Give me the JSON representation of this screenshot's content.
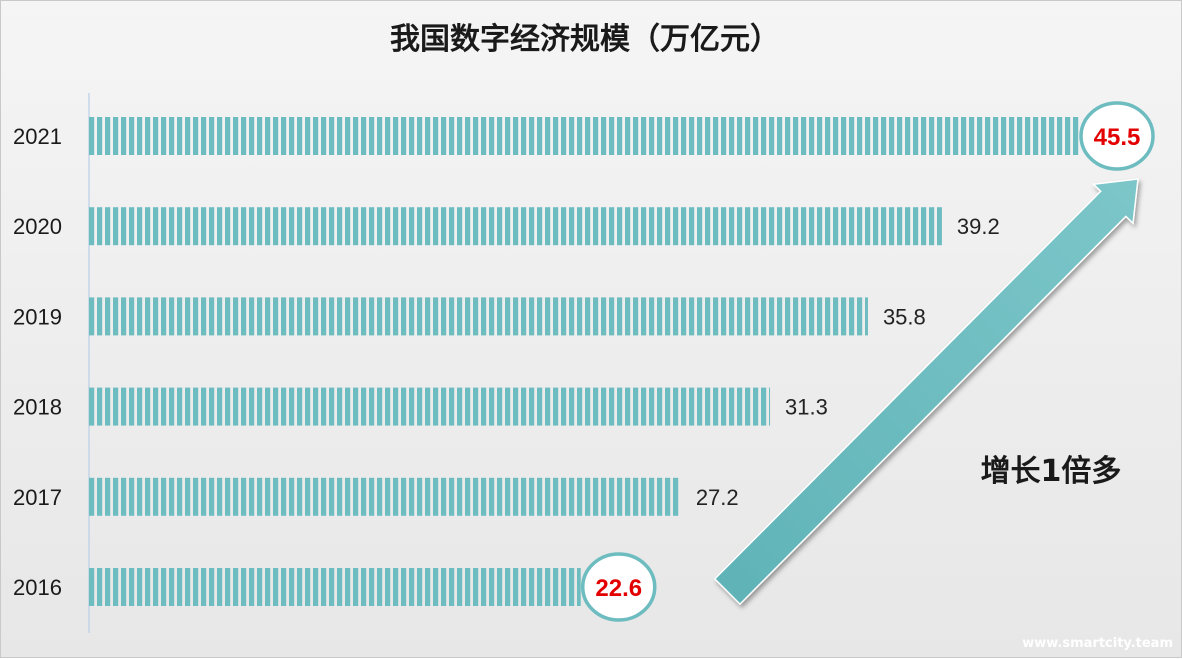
{
  "chart_data": {
    "type": "bar",
    "orientation": "horizontal",
    "title": "我国数字经济规模（万亿元）",
    "categories": [
      "2021",
      "2020",
      "2019",
      "2018",
      "2017",
      "2016"
    ],
    "values": [
      45.5,
      39.2,
      35.8,
      31.3,
      27.2,
      22.6
    ],
    "value_labels": [
      "45.5",
      "39.2",
      "35.8",
      "31.3",
      "27.2",
      "22.6"
    ],
    "highlighted": [
      "2021",
      "2016"
    ],
    "xlabel": "",
    "ylabel": "",
    "grid": false,
    "legend": "none",
    "annotation": "增长1倍多",
    "bar_color": "#6dbcc0",
    "highlight_color": "#e30000"
  },
  "watermark": "www.smartcity.team"
}
